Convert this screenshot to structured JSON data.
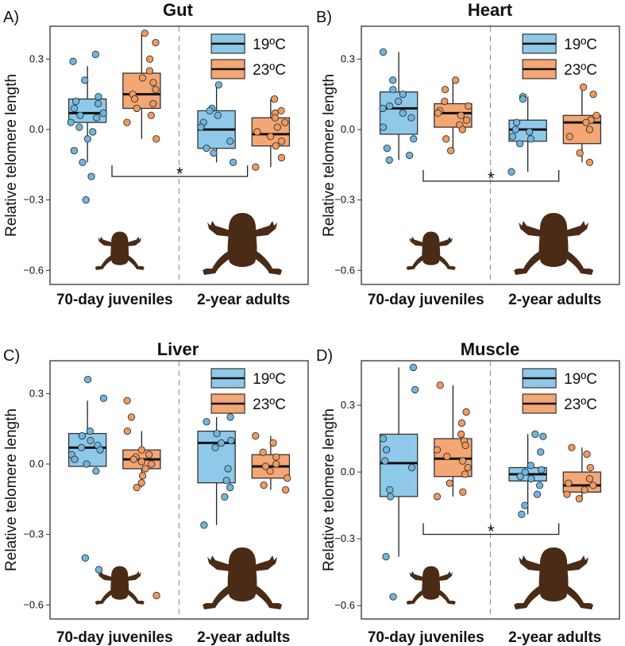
{
  "figure": {
    "series_names": [
      "19°C",
      "23°C"
    ],
    "colors": {
      "19C": "#8fc9ea",
      "23C": "#f4a775",
      "19C_dot": "#6db6e0",
      "23C_dot": "#f29a5e",
      "frog": "#4a2b16"
    }
  },
  "chart_data": [
    {
      "type": "box",
      "panel_label": "A)",
      "title": "Gut",
      "ylabel": "Relative telomere length",
      "ylim": [
        -0.66,
        0.44
      ],
      "yticks": [
        -0.6,
        -0.3,
        0.0,
        0.3
      ],
      "ytick_labels": [
        "−0.6",
        "−0.3",
        "0.0",
        "0.3"
      ],
      "categories": [
        "70-day juveniles",
        "2-year adults"
      ],
      "legend": [
        {
          "label": "19ºC"
        },
        {
          "label": "23ºC"
        }
      ],
      "significance": [
        {
          "label": "*",
          "from_category": 0,
          "to_category": 1,
          "y": -0.2
        }
      ],
      "series": [
        {
          "name": "19ºC",
          "boxes": [
            {
              "min": -0.14,
              "q1": 0.03,
              "median": 0.07,
              "q3": 0.13,
              "max": 0.27,
              "outliers": [
                -0.2,
                -0.3
              ],
              "points": [
                0.32,
                0.29,
                0.21,
                0.14,
                0.12,
                0.11,
                0.09,
                0.07,
                0.06,
                0.05,
                0.03,
                0.01,
                -0.01,
                -0.04,
                -0.09,
                -0.14,
                -0.2,
                -0.3
              ]
            },
            {
              "min": -0.14,
              "q1": -0.08,
              "median": 0.0,
              "q3": 0.08,
              "max": 0.18,
              "outliers": [],
              "points": [
                0.19,
                0.09,
                0.08,
                0.06,
                0.03,
                0.01,
                -0.05,
                -0.08,
                -0.1,
                -0.14
              ]
            }
          ]
        },
        {
          "name": "23ºC",
          "boxes": [
            {
              "min": -0.04,
              "q1": 0.09,
              "median": 0.15,
              "q3": 0.24,
              "max": 0.41,
              "outliers": [],
              "points": [
                0.41,
                0.37,
                0.3,
                0.25,
                0.22,
                0.2,
                0.17,
                0.15,
                0.13,
                0.11,
                0.09,
                0.06,
                0.03,
                -0.04
              ]
            },
            {
              "min": -0.16,
              "q1": -0.07,
              "median": -0.02,
              "q3": 0.05,
              "max": 0.13,
              "outliers": [],
              "points": [
                0.13,
                0.08,
                0.07,
                0.05,
                0.03,
                0.01,
                -0.01,
                -0.03,
                -0.05,
                -0.07,
                -0.12,
                -0.16
              ]
            }
          ]
        }
      ]
    },
    {
      "type": "box",
      "panel_label": "B)",
      "title": "Heart",
      "ylabel": "Relative telomere length",
      "ylim": [
        -0.66,
        0.44
      ],
      "yticks": [
        -0.6,
        -0.3,
        0.0,
        0.3
      ],
      "ytick_labels": [
        "−0.6",
        "−0.3",
        "0.0",
        "0.3"
      ],
      "categories": [
        "70-day juveniles",
        "2-year adults"
      ],
      "legend": [
        {
          "label": "19ºC"
        },
        {
          "label": "23ºC"
        }
      ],
      "significance": [
        {
          "label": "*",
          "from_category": 0,
          "to_category": 1,
          "y": -0.22
        }
      ],
      "series": [
        {
          "name": "19ºC",
          "boxes": [
            {
              "min": -0.13,
              "q1": -0.02,
              "median": 0.09,
              "q3": 0.16,
              "max": 0.33,
              "outliers": [],
              "points": [
                0.33,
                0.21,
                0.17,
                0.15,
                0.12,
                0.1,
                0.09,
                0.07,
                0.05,
                0.01,
                -0.04,
                -0.08,
                -0.11,
                -0.13
              ]
            },
            {
              "min": -0.18,
              "q1": -0.05,
              "median": 0.0,
              "q3": 0.04,
              "max": 0.14,
              "outliers": [],
              "points": [
                0.14,
                0.13,
                0.03,
                0.0,
                -0.01,
                -0.03,
                -0.04,
                -0.06,
                -0.18
              ]
            }
          ]
        },
        {
          "name": "23ºC",
          "boxes": [
            {
              "min": -0.09,
              "q1": 0.01,
              "median": 0.07,
              "q3": 0.11,
              "max": 0.21,
              "outliers": [],
              "points": [
                0.21,
                0.17,
                0.12,
                0.1,
                0.08,
                0.07,
                0.06,
                0.04,
                0.02,
                0.0,
                -0.04,
                -0.09
              ]
            },
            {
              "min": -0.14,
              "q1": -0.06,
              "median": 0.03,
              "q3": 0.06,
              "max": 0.18,
              "outliers": [],
              "points": [
                0.18,
                0.15,
                0.06,
                0.04,
                0.03,
                0.0,
                -0.03,
                -0.1,
                -0.14
              ]
            }
          ]
        }
      ]
    },
    {
      "type": "box",
      "panel_label": "C)",
      "title": "Liver",
      "ylabel": "Relative telomere length",
      "ylim": [
        -0.66,
        0.44
      ],
      "yticks": [
        -0.6,
        -0.3,
        0.0,
        0.3
      ],
      "ytick_labels": [
        "−0.6",
        "−0.3",
        "0.0",
        "0.3"
      ],
      "categories": [
        "70-day juveniles",
        "2-year adults"
      ],
      "legend": [
        {
          "label": "19ºC"
        },
        {
          "label": "23ºC"
        }
      ],
      "significance": [],
      "series": [
        {
          "name": "19ºC",
          "boxes": [
            {
              "min": -0.01,
              "q1": -0.01,
              "median": 0.07,
              "q3": 0.13,
              "max": 0.27,
              "outliers": [
                -0.4,
                -0.45
              ],
              "points": [
                0.36,
                0.28,
                0.14,
                0.12,
                0.1,
                0.08,
                0.07,
                0.06,
                0.04,
                0.02,
                0.0,
                -0.03,
                -0.4,
                -0.45
              ]
            },
            {
              "min": -0.26,
              "q1": -0.08,
              "median": 0.09,
              "q3": 0.14,
              "max": 0.2,
              "outliers": [],
              "points": [
                0.2,
                0.18,
                0.13,
                0.1,
                0.09,
                0.07,
                -0.02,
                -0.07,
                -0.1,
                -0.14,
                -0.26
              ]
            }
          ]
        },
        {
          "name": "23ºC",
          "boxes": [
            {
              "min": -0.1,
              "q1": -0.02,
              "median": 0.02,
              "q3": 0.06,
              "max": 0.14,
              "outliers": [
                0.27,
                -0.56
              ],
              "points": [
                0.27,
                0.2,
                0.14,
                0.06,
                0.04,
                0.03,
                0.02,
                0.01,
                0.0,
                -0.02,
                -0.05,
                -0.08,
                -0.1,
                -0.56
              ]
            },
            {
              "min": -0.11,
              "q1": -0.06,
              "median": -0.01,
              "q3": 0.04,
              "max": 0.12,
              "outliers": [],
              "points": [
                0.12,
                0.09,
                0.05,
                0.03,
                0.0,
                -0.01,
                -0.03,
                -0.06,
                -0.09,
                -0.11
              ]
            }
          ]
        }
      ]
    },
    {
      "type": "box",
      "panel_label": "D)",
      "title": "Muscle",
      "ylabel": "Relative telomere length",
      "ylim": [
        -0.66,
        0.5
      ],
      "yticks": [
        -0.6,
        -0.3,
        0.0,
        0.3
      ],
      "ytick_labels": [
        "−0.6",
        "−0.3",
        "0.0",
        "0.3"
      ],
      "categories": [
        "70-day juveniles",
        "2-year adults"
      ],
      "legend": [
        {
          "label": "19ºC"
        },
        {
          "label": "23ºC"
        }
      ],
      "significance": [
        {
          "label": "*",
          "from_category": 0,
          "to_category": 1,
          "y": -0.28
        }
      ],
      "series": [
        {
          "name": "19ºC",
          "boxes": [
            {
              "min": -0.38,
              "q1": -0.11,
              "median": 0.04,
              "q3": 0.17,
              "max": 0.47,
              "outliers": [
                -0.56
              ],
              "points": [
                0.47,
                0.37,
                0.15,
                0.1,
                0.05,
                0.02,
                -0.08,
                -0.11,
                -0.38,
                -0.56
              ]
            },
            {
              "min": -0.19,
              "q1": -0.04,
              "median": -0.01,
              "q3": 0.02,
              "max": 0.17,
              "outliers": [],
              "points": [
                0.17,
                0.16,
                0.09,
                0.03,
                0.01,
                0.0,
                -0.02,
                -0.03,
                -0.06,
                -0.1,
                -0.15,
                -0.19
              ]
            }
          ]
        },
        {
          "name": "23ºC",
          "boxes": [
            {
              "min": -0.11,
              "q1": -0.02,
              "median": 0.06,
              "q3": 0.15,
              "max": 0.39,
              "outliers": [],
              "points": [
                0.39,
                0.27,
                0.22,
                0.17,
                0.14,
                0.12,
                0.1,
                0.07,
                0.05,
                0.02,
                -0.01,
                -0.05,
                -0.09,
                -0.11
              ]
            },
            {
              "min": -0.12,
              "q1": -0.09,
              "median": -0.06,
              "q3": 0.0,
              "max": 0.11,
              "outliers": [],
              "points": [
                0.11,
                0.08,
                0.02,
                -0.03,
                -0.05,
                -0.06,
                -0.08,
                -0.1,
                -0.12
              ]
            }
          ]
        }
      ]
    }
  ]
}
